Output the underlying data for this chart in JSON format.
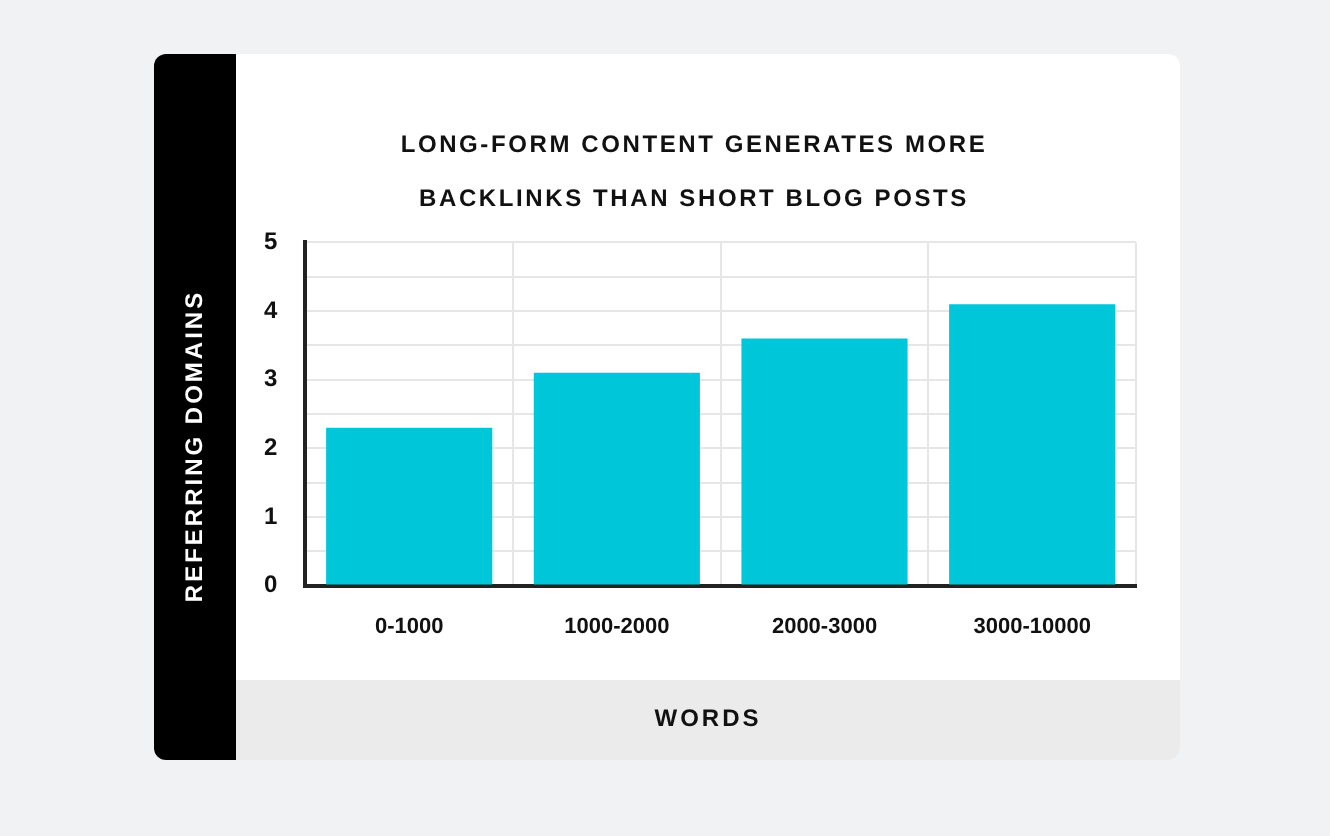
{
  "chart_data": {
    "type": "bar",
    "title": "LONG-FORM CONTENT GENERATES MORE BACKLINKS THAN SHORT BLOG POSTS",
    "xlabel": "WORDS",
    "ylabel": "REFERRING DOMAINS",
    "categories": [
      "0-1000",
      "1000-2000",
      "2000-3000",
      "3000-10000"
    ],
    "values": [
      2.3,
      3.1,
      3.6,
      4.1
    ],
    "color": "#00c6da",
    "ylim": [
      0,
      5
    ],
    "yticks": [
      0,
      {
        "value": 0.5,
        "label": null
      },
      1,
      {
        "value": 1.5,
        "label": null
      },
      2,
      {
        "value": 2.5,
        "label": null
      },
      3,
      {
        "value": 3.5,
        "label": null
      },
      4,
      {
        "value": 4.5,
        "label": null
      },
      5
    ],
    "grid": true
  }
}
